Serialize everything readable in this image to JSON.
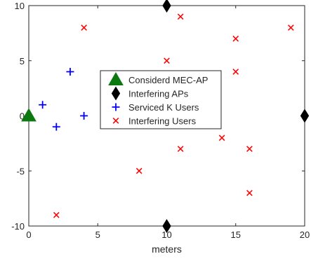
{
  "chart_data": {
    "type": "scatter",
    "title": "",
    "xlabel": "meters",
    "ylabel": "",
    "xlim": [
      0,
      20
    ],
    "ylim": [
      -10,
      10
    ],
    "xticks": [
      0,
      5,
      10,
      15,
      20
    ],
    "yticks": [
      -10,
      -5,
      0,
      5,
      10
    ],
    "xtick_labels": [
      "0",
      "5",
      "10",
      "15",
      "20"
    ],
    "ytick_labels": [
      "-10",
      "-5",
      "0",
      "5",
      "10"
    ],
    "grid": false,
    "legend_position": "center",
    "series": [
      {
        "name": "Considerd MEC-AP",
        "marker": "triangle",
        "color": "#0a7a10",
        "points": [
          [
            0,
            0
          ]
        ]
      },
      {
        "name": "Interfering APs",
        "marker": "diamond",
        "color": "#000000",
        "points": [
          [
            10,
            10
          ],
          [
            10,
            -10
          ],
          [
            20,
            0
          ]
        ]
      },
      {
        "name": "Serviced K Users",
        "marker": "plus",
        "color": "#0000ff",
        "points": [
          [
            1,
            1
          ],
          [
            2,
            -1
          ],
          [
            3,
            4
          ],
          [
            4,
            0
          ]
        ]
      },
      {
        "name": "Interfering Users",
        "marker": "x",
        "color": "#ff0000",
        "points": [
          [
            2,
            -9
          ],
          [
            4,
            8
          ],
          [
            8,
            -5
          ],
          [
            10,
            5
          ],
          [
            11,
            9
          ],
          [
            11,
            -3
          ],
          [
            14,
            -2
          ],
          [
            15,
            7
          ],
          [
            15,
            4
          ],
          [
            16,
            -3
          ],
          [
            16,
            -7
          ],
          [
            19,
            8
          ]
        ]
      }
    ]
  }
}
